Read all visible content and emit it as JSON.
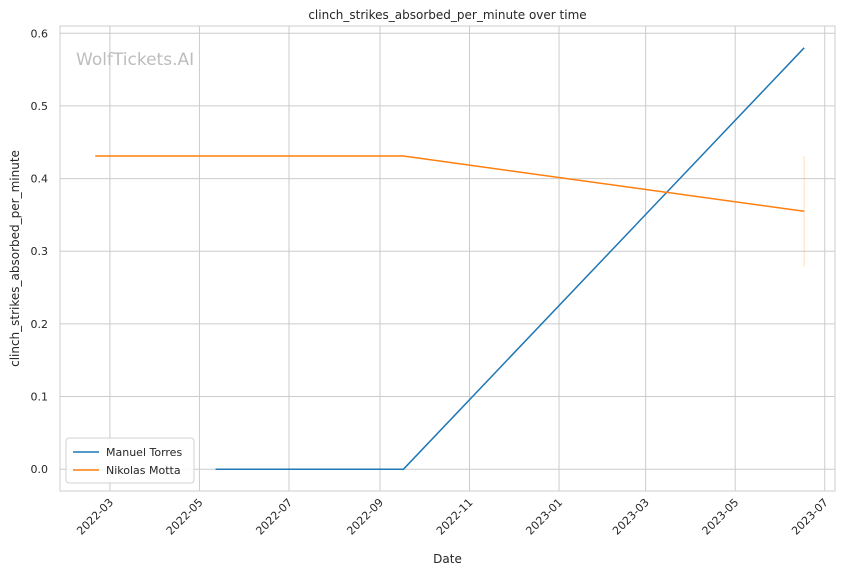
{
  "chart_data": {
    "type": "line",
    "title": "clinch_strikes_absorbed_per_minute over time",
    "xlabel": "Date",
    "ylabel": "clinch_strikes_absorbed_per_minute",
    "watermark": "WolfTickets.AI",
    "xlim": [
      "2022-01-26",
      "2023-07-08"
    ],
    "ylim": [
      -0.03,
      0.61
    ],
    "x_ticks": [
      "2022-03",
      "2022-05",
      "2022-07",
      "2022-09",
      "2022-11",
      "2023-01",
      "2023-03",
      "2023-05",
      "2023-07"
    ],
    "y_ticks": [
      "0.0",
      "0.1",
      "0.2",
      "0.3",
      "0.4",
      "0.5",
      "0.6"
    ],
    "grid": true,
    "legend_position": "lower-left",
    "series": [
      {
        "name": "Manuel Torres",
        "color": "#1f77b4",
        "points": [
          {
            "x": "2022-05-12",
            "y": 0.0
          },
          {
            "x": "2022-09-17",
            "y": 0.0
          },
          {
            "x": "2023-06-17",
            "y": 0.58
          }
        ]
      },
      {
        "name": "Nikolas Motta",
        "color": "#ff7f0e",
        "points": [
          {
            "x": "2022-02-19",
            "y": 0.431
          },
          {
            "x": "2022-09-17",
            "y": 0.431
          },
          {
            "x": "2023-06-17",
            "y": 0.355
          }
        ],
        "error_bar": {
          "x": "2023-06-17",
          "low": 0.278,
          "high": 0.431
        }
      }
    ]
  }
}
